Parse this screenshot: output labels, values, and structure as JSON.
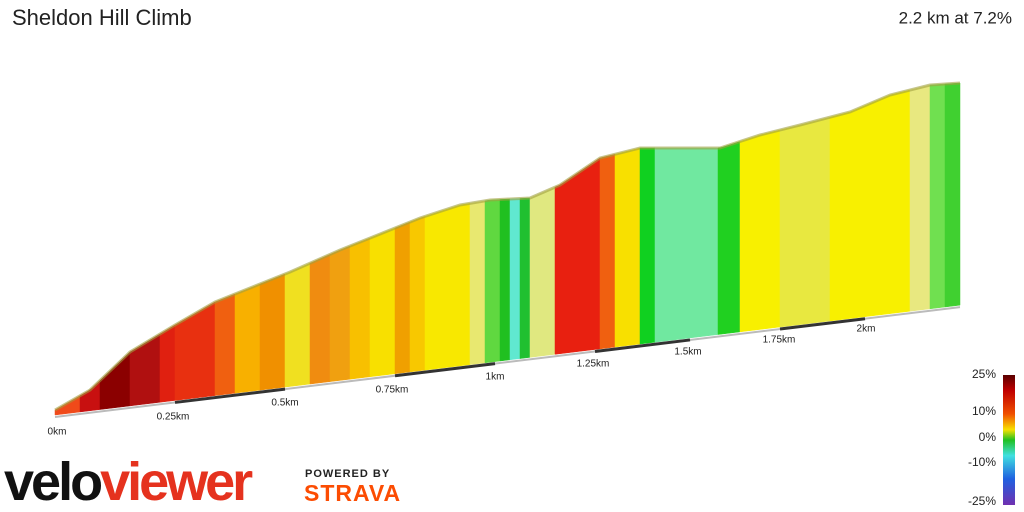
{
  "header": {
    "title": "Sheldon Hill Climb",
    "summary": "2.2 km at 7.2%"
  },
  "distance_axis": {
    "labels": [
      "0km",
      "0.25km",
      "0.5km",
      "0.75km",
      "1km",
      "1.25km",
      "1.5km",
      "1.75km",
      "2km"
    ]
  },
  "gradient_legend": {
    "labels": [
      "25%",
      "10%",
      "0%",
      "-10%",
      "-25%"
    ]
  },
  "branding": {
    "logo_left": "velo",
    "logo_right": "viewer",
    "powered_by": "POWERED BY",
    "partner": "STRAVA"
  }
}
